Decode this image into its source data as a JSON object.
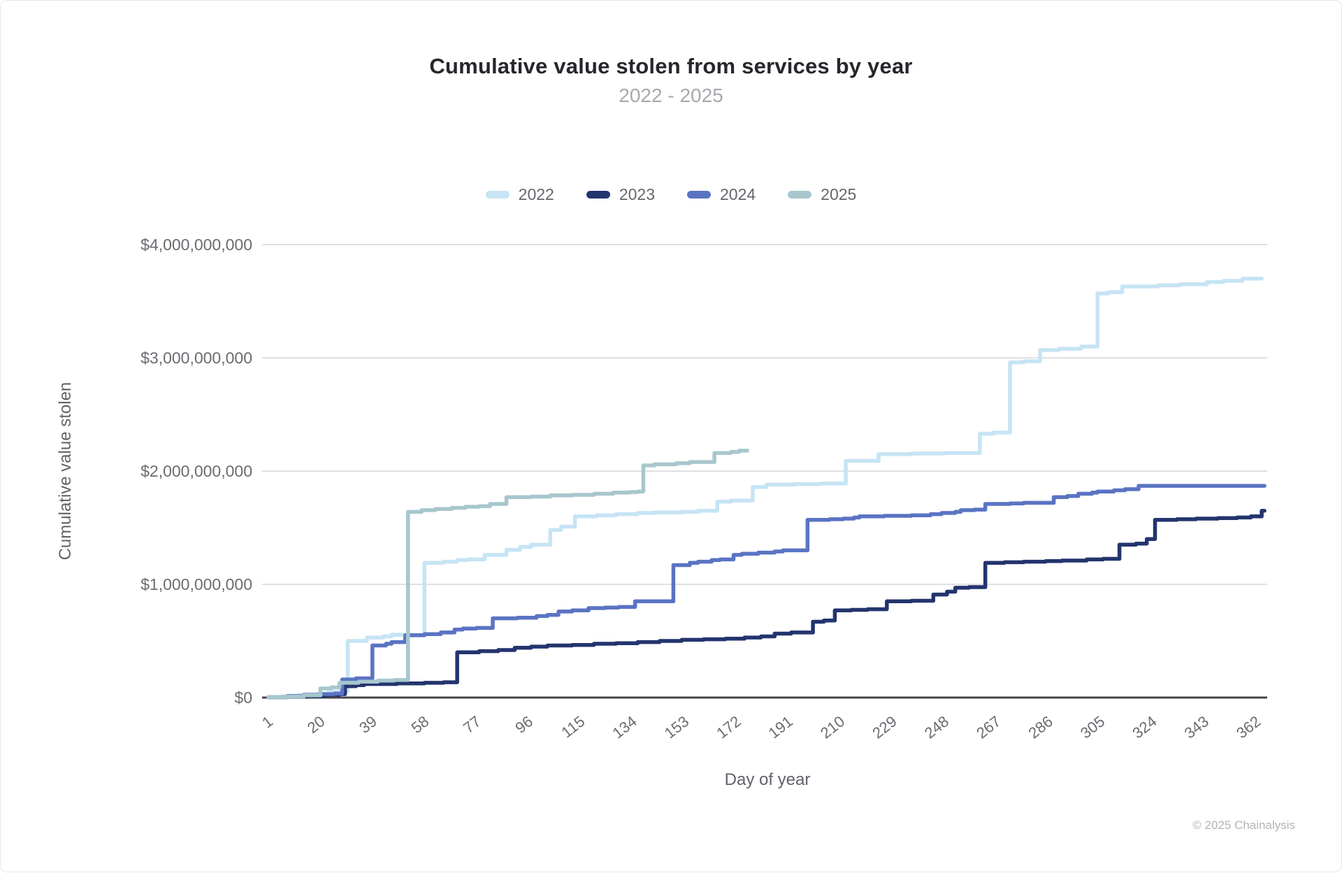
{
  "footer": {
    "copyright": "© 2025 Chainalysis"
  },
  "chart_data": {
    "type": "line",
    "step": true,
    "title": "Cumulative value stolen from services by year",
    "subtitle": "2022 - 2025",
    "xlabel": "Day of year",
    "ylabel": "Cumulative value stolen",
    "units": "USD, values stored in billions",
    "grid": "horizontal",
    "legend_position": "top",
    "xlim": [
      1,
      366
    ],
    "ylim": [
      0,
      4000000000
    ],
    "x_axis": {
      "ticks": [
        1,
        20,
        39,
        58,
        77,
        96,
        115,
        134,
        153,
        172,
        191,
        210,
        229,
        248,
        267,
        286,
        305,
        324,
        343,
        362
      ]
    },
    "y_axis": {
      "ticks": [
        {
          "value": 0,
          "label": "$0"
        },
        {
          "value": 1,
          "label": "$1,000,000,000"
        },
        {
          "value": 2,
          "label": "$2,000,000,000"
        },
        {
          "value": 3,
          "label": "$3,000,000,000"
        },
        {
          "value": 4,
          "label": "$4,000,000,000"
        }
      ]
    },
    "series": [
      {
        "name": "2022",
        "color": "#c6e4f4",
        "end_day": 364,
        "points": [
          [
            1,
            0.005
          ],
          [
            6,
            0.01
          ],
          [
            12,
            0.02
          ],
          [
            19,
            0.035
          ],
          [
            23,
            0.05
          ],
          [
            27,
            0.055
          ],
          [
            30,
            0.5
          ],
          [
            37,
            0.53
          ],
          [
            43,
            0.54
          ],
          [
            46,
            0.555
          ],
          [
            58,
            1.19
          ],
          [
            65,
            1.2
          ],
          [
            70,
            1.215
          ],
          [
            74,
            1.22
          ],
          [
            80,
            1.26
          ],
          [
            88,
            1.305
          ],
          [
            93,
            1.33
          ],
          [
            97,
            1.35
          ],
          [
            104,
            1.48
          ],
          [
            108,
            1.51
          ],
          [
            113,
            1.6
          ],
          [
            121,
            1.61
          ],
          [
            128,
            1.62
          ],
          [
            136,
            1.63
          ],
          [
            142,
            1.635
          ],
          [
            152,
            1.64
          ],
          [
            158,
            1.65
          ],
          [
            165,
            1.73
          ],
          [
            170,
            1.74
          ],
          [
            178,
            1.86
          ],
          [
            183,
            1.88
          ],
          [
            193,
            1.885
          ],
          [
            203,
            1.89
          ],
          [
            212,
            2.09
          ],
          [
            224,
            2.15
          ],
          [
            236,
            2.155
          ],
          [
            248,
            2.16
          ],
          [
            261,
            2.33
          ],
          [
            266,
            2.34
          ],
          [
            272,
            2.96
          ],
          [
            277,
            2.97
          ],
          [
            283,
            3.07
          ],
          [
            290,
            3.08
          ],
          [
            298,
            3.1
          ],
          [
            304,
            3.57
          ],
          [
            308,
            3.58
          ],
          [
            313,
            3.63
          ],
          [
            326,
            3.64
          ],
          [
            334,
            3.65
          ],
          [
            344,
            3.67
          ],
          [
            350,
            3.68
          ],
          [
            357,
            3.7
          ]
        ]
      },
      {
        "name": "2023",
        "color": "#23346e",
        "end_day": 365,
        "points": [
          [
            1,
            0.003
          ],
          [
            8,
            0.008
          ],
          [
            15,
            0.015
          ],
          [
            22,
            0.025
          ],
          [
            27,
            0.03
          ],
          [
            29,
            0.1
          ],
          [
            33,
            0.11
          ],
          [
            36,
            0.12
          ],
          [
            48,
            0.125
          ],
          [
            58,
            0.13
          ],
          [
            65,
            0.135
          ],
          [
            70,
            0.4
          ],
          [
            78,
            0.41
          ],
          [
            85,
            0.42
          ],
          [
            91,
            0.44
          ],
          [
            97,
            0.45
          ],
          [
            103,
            0.46
          ],
          [
            112,
            0.465
          ],
          [
            120,
            0.475
          ],
          [
            128,
            0.48
          ],
          [
            136,
            0.49
          ],
          [
            144,
            0.5
          ],
          [
            152,
            0.51
          ],
          [
            160,
            0.515
          ],
          [
            168,
            0.52
          ],
          [
            175,
            0.53
          ],
          [
            181,
            0.54
          ],
          [
            186,
            0.565
          ],
          [
            192,
            0.575
          ],
          [
            200,
            0.67
          ],
          [
            204,
            0.68
          ],
          [
            208,
            0.77
          ],
          [
            214,
            0.775
          ],
          [
            220,
            0.78
          ],
          [
            227,
            0.85
          ],
          [
            236,
            0.855
          ],
          [
            244,
            0.91
          ],
          [
            249,
            0.935
          ],
          [
            252,
            0.97
          ],
          [
            257,
            0.975
          ],
          [
            263,
            1.19
          ],
          [
            270,
            1.195
          ],
          [
            277,
            1.2
          ],
          [
            285,
            1.205
          ],
          [
            291,
            1.21
          ],
          [
            300,
            1.22
          ],
          [
            306,
            1.225
          ],
          [
            312,
            1.35
          ],
          [
            318,
            1.36
          ],
          [
            322,
            1.4
          ],
          [
            325,
            1.57
          ],
          [
            333,
            1.575
          ],
          [
            340,
            1.58
          ],
          [
            348,
            1.585
          ],
          [
            355,
            1.59
          ],
          [
            360,
            1.6
          ],
          [
            364,
            1.65
          ]
        ]
      },
      {
        "name": "2024",
        "color": "#5a74c3",
        "end_day": 365,
        "points": [
          [
            1,
            0.004
          ],
          [
            8,
            0.015
          ],
          [
            14,
            0.025
          ],
          [
            20,
            0.03
          ],
          [
            25,
            0.035
          ],
          [
            28,
            0.16
          ],
          [
            33,
            0.17
          ],
          [
            39,
            0.46
          ],
          [
            44,
            0.475
          ],
          [
            46,
            0.49
          ],
          [
            51,
            0.55
          ],
          [
            58,
            0.56
          ],
          [
            64,
            0.575
          ],
          [
            69,
            0.6
          ],
          [
            72,
            0.61
          ],
          [
            77,
            0.615
          ],
          [
            83,
            0.7
          ],
          [
            92,
            0.705
          ],
          [
            99,
            0.72
          ],
          [
            103,
            0.73
          ],
          [
            107,
            0.76
          ],
          [
            112,
            0.77
          ],
          [
            118,
            0.79
          ],
          [
            124,
            0.795
          ],
          [
            129,
            0.8
          ],
          [
            135,
            0.85
          ],
          [
            149,
            1.17
          ],
          [
            155,
            1.19
          ],
          [
            158,
            1.2
          ],
          [
            163,
            1.215
          ],
          [
            166,
            1.22
          ],
          [
            171,
            1.26
          ],
          [
            174,
            1.27
          ],
          [
            180,
            1.28
          ],
          [
            186,
            1.29
          ],
          [
            189,
            1.3
          ],
          [
            198,
            1.57
          ],
          [
            206,
            1.575
          ],
          [
            211,
            1.58
          ],
          [
            215,
            1.59
          ],
          [
            217,
            1.6
          ],
          [
            226,
            1.605
          ],
          [
            236,
            1.61
          ],
          [
            243,
            1.62
          ],
          [
            247,
            1.63
          ],
          [
            252,
            1.64
          ],
          [
            254,
            1.655
          ],
          [
            259,
            1.66
          ],
          [
            263,
            1.71
          ],
          [
            272,
            1.715
          ],
          [
            277,
            1.72
          ],
          [
            288,
            1.77
          ],
          [
            293,
            1.78
          ],
          [
            297,
            1.8
          ],
          [
            302,
            1.81
          ],
          [
            304,
            1.82
          ],
          [
            310,
            1.83
          ],
          [
            314,
            1.84
          ],
          [
            319,
            1.87
          ]
        ]
      },
      {
        "name": "2025",
        "color": "#a7c7cd",
        "end_day": 176,
        "points": [
          [
            1,
            0.004
          ],
          [
            8,
            0.01
          ],
          [
            14,
            0.02
          ],
          [
            20,
            0.08
          ],
          [
            24,
            0.09
          ],
          [
            27,
            0.13
          ],
          [
            34,
            0.14
          ],
          [
            41,
            0.15
          ],
          [
            47,
            0.155
          ],
          [
            52,
            1.64
          ],
          [
            57,
            1.655
          ],
          [
            62,
            1.665
          ],
          [
            68,
            1.675
          ],
          [
            73,
            1.685
          ],
          [
            78,
            1.69
          ],
          [
            82,
            1.71
          ],
          [
            88,
            1.77
          ],
          [
            97,
            1.775
          ],
          [
            104,
            1.785
          ],
          [
            112,
            1.79
          ],
          [
            120,
            1.8
          ],
          [
            127,
            1.81
          ],
          [
            133,
            1.815
          ],
          [
            136,
            1.82
          ],
          [
            138,
            2.05
          ],
          [
            142,
            2.06
          ],
          [
            150,
            2.07
          ],
          [
            155,
            2.08
          ],
          [
            164,
            2.16
          ],
          [
            170,
            2.17
          ],
          [
            173,
            2.18
          ]
        ]
      }
    ]
  }
}
